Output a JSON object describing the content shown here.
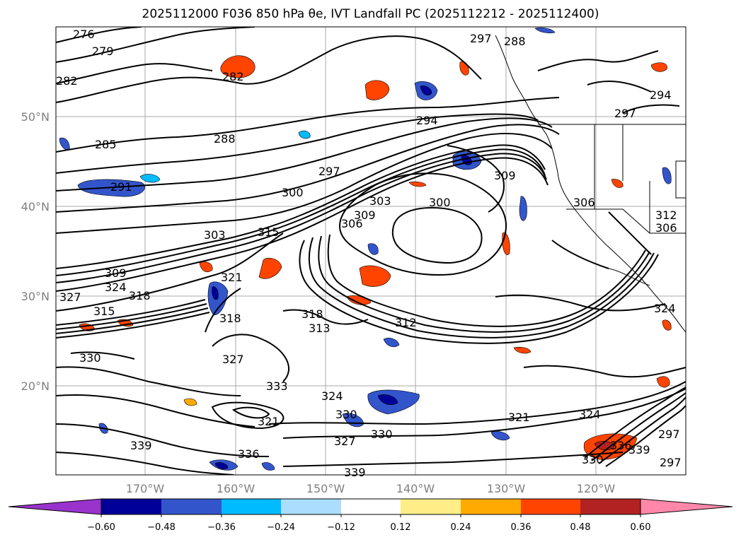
{
  "title": "2025112000 F036 850 hPa θe, IVT Landfall PC (2025112212 - 2025112400)",
  "axes": {
    "lon_ticks": [
      "170°W",
      "160°W",
      "150°W",
      "140°W",
      "130°W",
      "120°W"
    ],
    "lat_ticks": [
      "50°N",
      "40°N",
      "30°N",
      "20°N"
    ]
  },
  "colorbar": {
    "tick_labels": [
      "−0.60",
      "−0.48",
      "−0.36",
      "−0.24",
      "−0.12",
      "0.12",
      "0.24",
      "0.36",
      "0.48",
      "0.60"
    ],
    "colors": [
      "#9933cc",
      "#000099",
      "#3355cc",
      "#00bbff",
      "#aaddff",
      "#ffffff",
      "#ffee88",
      "#ffaa00",
      "#ff4400",
      "#b22222",
      "#ff88aa"
    ]
  },
  "contour_labels": [
    "276",
    "279",
    "282",
    "282",
    "285",
    "288",
    "288",
    "291",
    "294",
    "297",
    "297",
    "300",
    "300",
    "303",
    "303",
    "306",
    "306",
    "309",
    "309",
    "309",
    "312",
    "313",
    "315",
    "315",
    "318",
    "318",
    "318",
    "321",
    "321",
    "321",
    "324",
    "324",
    "324",
    "327",
    "327",
    "327",
    "330",
    "330",
    "330",
    "330",
    "333",
    "336",
    "336",
    "339",
    "339",
    "339",
    "297",
    "294",
    "297",
    "306",
    "312",
    "324",
    "297"
  ]
}
